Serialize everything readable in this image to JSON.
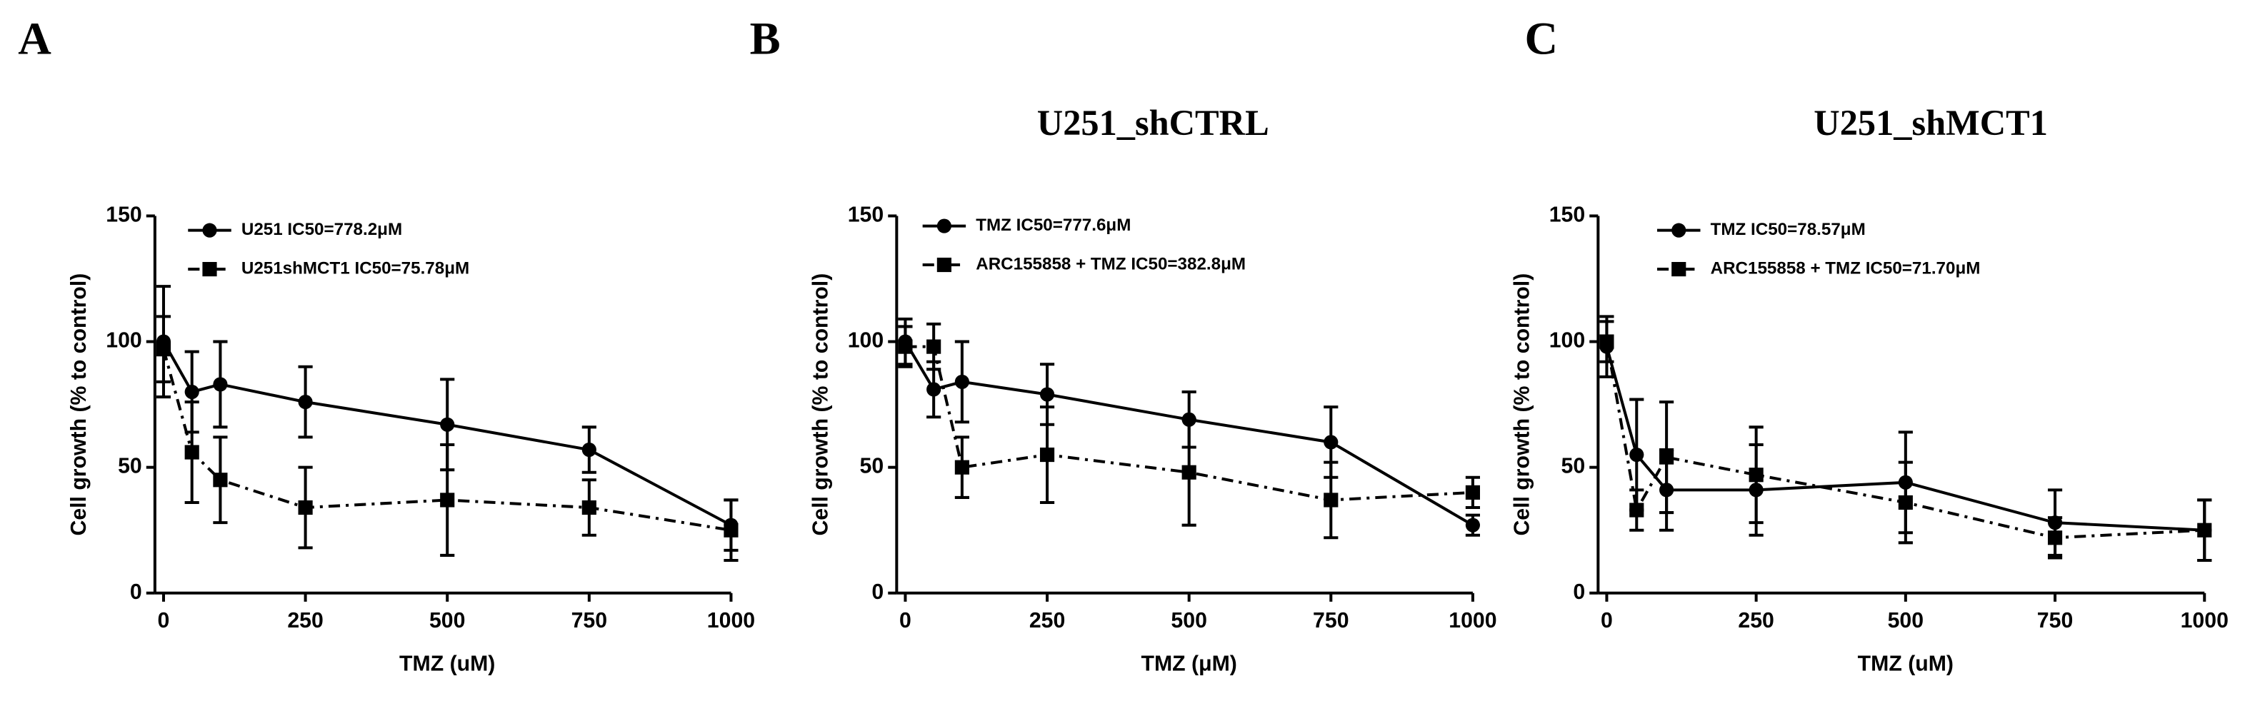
{
  "chart_data": [
    {
      "type": "line",
      "panel_label": "A",
      "xlabel": "TMZ (uM)",
      "ylabel": "Cell growth (% to control)",
      "x": [
        0,
        50,
        100,
        250,
        500,
        750,
        1000
      ],
      "xlim": [
        0,
        1000
      ],
      "xticks": [
        0,
        250,
        500,
        750,
        1000
      ],
      "ylim": [
        0,
        150
      ],
      "yticks": [
        0,
        50,
        100,
        150
      ],
      "series": [
        {
          "name": "U251 IC50=778.2μM",
          "color": "#000000",
          "dash": "solid",
          "marker": "circle",
          "values": [
            100,
            80,
            83,
            76,
            67,
            57,
            27
          ],
          "errors": [
            22,
            16,
            17,
            14,
            18,
            9,
            10
          ]
        },
        {
          "name": "U251shMCT1 IC50=75.78μM",
          "color": "#000000",
          "dash": "dashdot",
          "marker": "square",
          "values": [
            97,
            56,
            45,
            34,
            37,
            34,
            25
          ],
          "errors": [
            13,
            20,
            17,
            16,
            22,
            11,
            12
          ]
        }
      ]
    },
    {
      "type": "line",
      "panel_label": "B",
      "title": "U251_shCTRL",
      "xlabel": "TMZ (μM)",
      "ylabel": "Cell growth (% to control)",
      "x": [
        0,
        50,
        100,
        250,
        500,
        750,
        1000
      ],
      "xlim": [
        0,
        1000
      ],
      "xticks": [
        0,
        250,
        500,
        750,
        1000
      ],
      "ylim": [
        0,
        150
      ],
      "yticks": [
        0,
        50,
        100,
        150
      ],
      "series": [
        {
          "name": "TMZ  IC50=777.6μM",
          "color": "#000000",
          "dash": "solid",
          "marker": "circle",
          "values": [
            100,
            81,
            84,
            79,
            69,
            60,
            27
          ],
          "errors": [
            9,
            11,
            16,
            12,
            11,
            14,
            4
          ]
        },
        {
          "name": "ARC155858 + TMZ IC50=382.8μM",
          "color": "#000000",
          "dash": "dashdot",
          "marker": "square",
          "values": [
            98,
            98,
            50,
            55,
            48,
            37,
            40
          ],
          "errors": [
            8,
            9,
            12,
            19,
            21,
            15,
            6
          ]
        }
      ]
    },
    {
      "type": "line",
      "panel_label": "C",
      "title": "U251_shMCT1",
      "xlabel": "TMZ (uM)",
      "ylabel": "Cell growth (% to control)",
      "x": [
        0,
        50,
        100,
        250,
        500,
        750,
        1000
      ],
      "xlim": [
        0,
        1000
      ],
      "xticks": [
        0,
        250,
        500,
        750,
        1000
      ],
      "ylim": [
        0,
        150
      ],
      "yticks": [
        0,
        50,
        100,
        150
      ],
      "series": [
        {
          "name": "TMZ IC50=78.57μM",
          "color": "#000000",
          "dash": "solid",
          "marker": "circle",
          "values": [
            98,
            55,
            41,
            41,
            44,
            28,
            25
          ],
          "errors": [
            12,
            22,
            16,
            18,
            20,
            13,
            12
          ]
        },
        {
          "name": "ARC155858 + TMZ IC50=71.70μM",
          "color": "#000000",
          "dash": "dashdot",
          "marker": "square",
          "values": [
            100,
            33,
            54,
            47,
            36,
            22,
            25
          ],
          "errors": [
            8,
            8,
            22,
            19,
            16,
            8,
            12
          ]
        }
      ]
    }
  ]
}
